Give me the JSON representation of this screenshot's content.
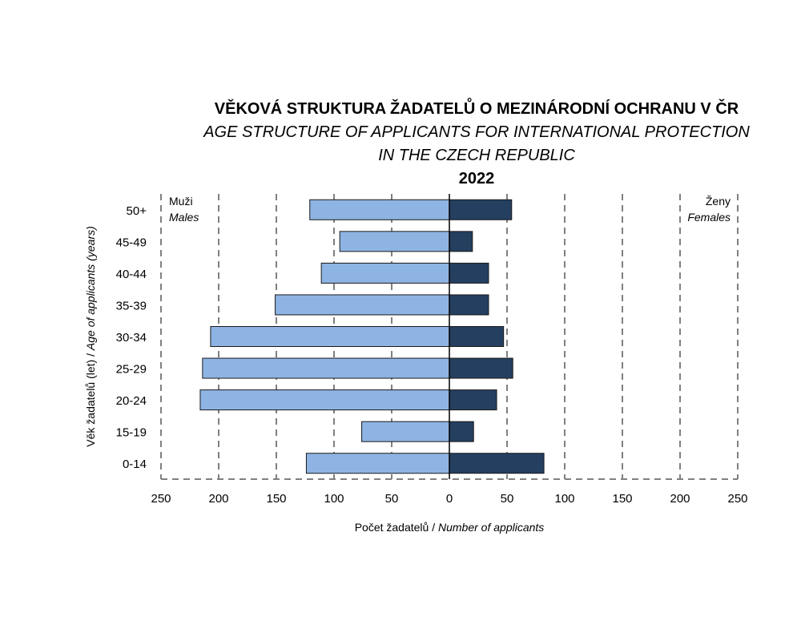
{
  "chart_data": {
    "type": "bar",
    "orientation": "horizontal-population-pyramid",
    "title": "VĚKOVÁ STRUKTURA ŽADATELŮ O MEZINÁRODNÍ OCHRANU V ČR",
    "title_en_line1": "AGE STRUCTURE OF APPLICANTS FOR INTERNATIONAL PROTECTION",
    "title_en_line2": "IN THE CZECH REPUBLIC",
    "year": "2022",
    "xlabel_cz": "Počet žadatelů / ",
    "xlabel_en": "Number of applicants",
    "ylabel_cz": "Věk žadatelů (let) / ",
    "ylabel_en": "Age of applicants (years)",
    "categories": [
      "0-14",
      "15-19",
      "20-24",
      "25-29",
      "30-34",
      "35-39",
      "40-44",
      "45-49",
      "50+"
    ],
    "series": [
      {
        "name": "Muži",
        "name_en": "Males",
        "side": "left",
        "color": "#8EB4E3",
        "values": [
          124,
          76,
          216,
          214,
          207,
          151,
          111,
          95,
          121
        ]
      },
      {
        "name": "Ženy",
        "name_en": "Females",
        "side": "right",
        "color": "#243F60",
        "values": [
          82,
          21,
          41,
          55,
          47,
          34,
          34,
          20,
          54
        ]
      }
    ],
    "xlim": [
      -250,
      250
    ],
    "xticks": [
      -250,
      -200,
      -150,
      -100,
      -50,
      0,
      50,
      100,
      150,
      200,
      250
    ],
    "xtick_labels": [
      "250",
      "200",
      "150",
      "100",
      "50",
      "0",
      "50",
      "100",
      "150",
      "200",
      "250"
    ],
    "grid": "vertical dashed",
    "legend": "top-left and top-right corners"
  }
}
